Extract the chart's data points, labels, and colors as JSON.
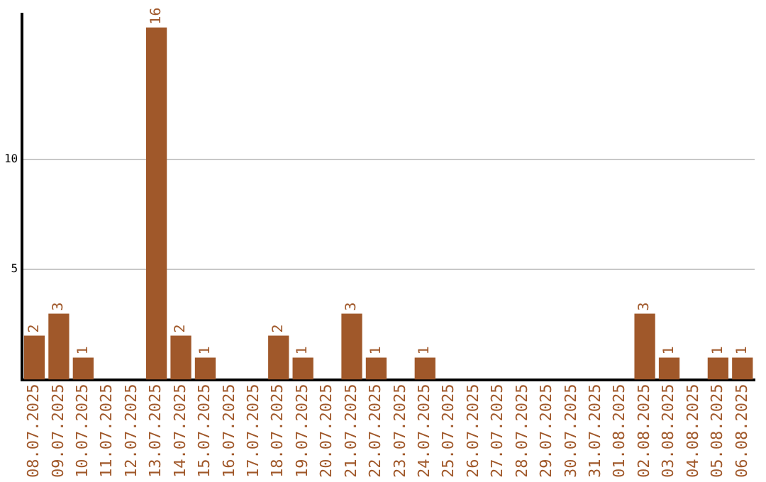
{
  "chart_data": {
    "type": "bar",
    "categories": [
      "08.07.2025",
      "09.07.2025",
      "10.07.2025",
      "11.07.2025",
      "12.07.2025",
      "13.07.2025",
      "14.07.2025",
      "15.07.2025",
      "16.07.2025",
      "17.07.2025",
      "18.07.2025",
      "19.07.2025",
      "20.07.2025",
      "21.07.2025",
      "22.07.2025",
      "23.07.2025",
      "24.07.2025",
      "25.07.2025",
      "26.07.2025",
      "27.07.2025",
      "28.07.2025",
      "29.07.2025",
      "30.07.2025",
      "31.07.2025",
      "01.08.2025",
      "02.08.2025",
      "03.08.2025",
      "04.08.2025",
      "05.08.2025",
      "06.08.2025"
    ],
    "values": [
      2,
      3,
      1,
      0,
      0,
      16,
      2,
      1,
      0,
      0,
      2,
      1,
      0,
      3,
      1,
      0,
      1,
      0,
      0,
      0,
      0,
      0,
      0,
      0,
      0,
      3,
      1,
      0,
      1,
      1
    ],
    "value_labels": [
      "2",
      "3",
      "1",
      null,
      null,
      "16",
      "2",
      "1",
      null,
      null,
      "2",
      "1",
      null,
      "3",
      "1",
      null,
      "1",
      null,
      null,
      null,
      null,
      null,
      null,
      null,
      null,
      "3",
      "1",
      null,
      "1",
      "1"
    ],
    "color": "#a0582a",
    "ylim": [
      0,
      16.6
    ],
    "yticks": [
      5,
      10
    ],
    "grid": "y"
  }
}
